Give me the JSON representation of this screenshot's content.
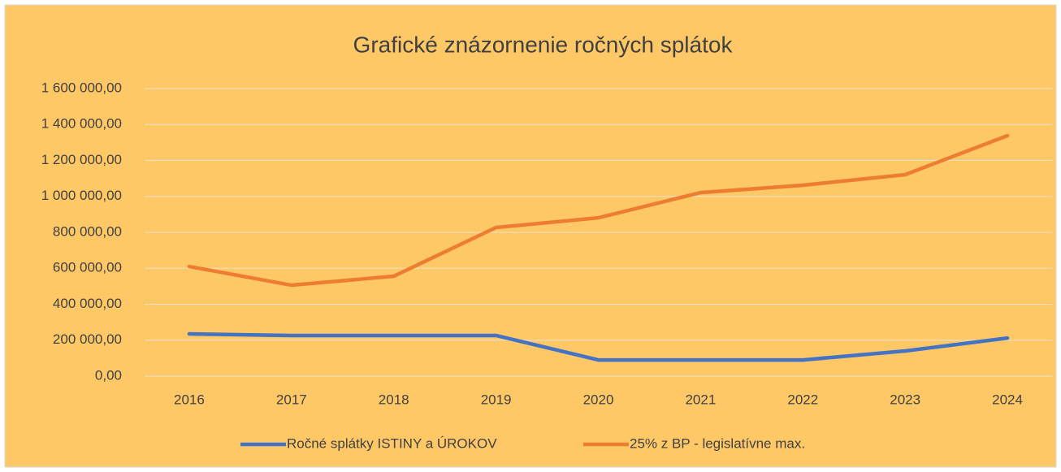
{
  "chart_data": {
    "type": "line",
    "title": "Grafické znázornenie ročných splátok",
    "categories": [
      "2016",
      "2017",
      "2018",
      "2019",
      "2020",
      "2021",
      "2022",
      "2023",
      "2024"
    ],
    "series": [
      {
        "name": "Ročné splátky ISTINY a ÚROKOV",
        "color": "#4472c4",
        "values": [
          235000,
          226000,
          226000,
          226000,
          90000,
          90000,
          90000,
          140000,
          212000
        ]
      },
      {
        "name": "25% z BP - legislatívne max.",
        "color": "#ed7d31",
        "values": [
          610000,
          506000,
          556000,
          827000,
          881000,
          1021000,
          1062000,
          1121000,
          1338000
        ]
      }
    ],
    "ylim": [
      0,
      1600000
    ],
    "yticks": [
      {
        "value": 0,
        "label": "0,00"
      },
      {
        "value": 200000,
        "label": "200 000,00"
      },
      {
        "value": 400000,
        "label": "400 000,00"
      },
      {
        "value": 600000,
        "label": "600 000,00"
      },
      {
        "value": 800000,
        "label": "800 000,00"
      },
      {
        "value": 1000000,
        "label": "1 000 000,00"
      },
      {
        "value": 1200000,
        "label": "1 200 000,00"
      },
      {
        "value": 1400000,
        "label": "1 400 000,00"
      },
      {
        "value": 1600000,
        "label": "1 600 000,00"
      }
    ],
    "grid": true,
    "legend": "bottom"
  }
}
